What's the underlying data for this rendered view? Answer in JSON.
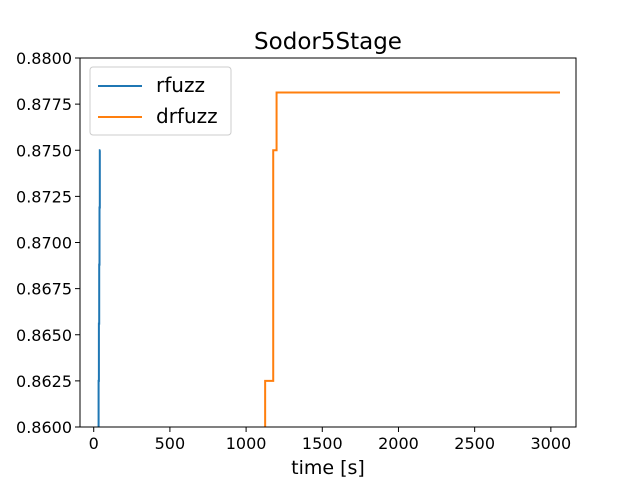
{
  "chart_data": {
    "type": "line",
    "title": "Sodor5Stage",
    "xlabel": "time [s]",
    "ylabel": "",
    "xlim": [
      -90,
      3165
    ],
    "ylim": [
      0.86,
      0.88
    ],
    "xticks": [
      0,
      500,
      1000,
      1500,
      2000,
      2500,
      3000
    ],
    "yticks": [
      0.86,
      0.8625,
      0.865,
      0.8675,
      0.87,
      0.8725,
      0.875,
      0.8775,
      0.88
    ],
    "xtick_labels": [
      "0",
      "500",
      "1000",
      "1500",
      "2000",
      "2500",
      "3000"
    ],
    "ytick_labels": [
      "0.8600",
      "0.8625",
      "0.8650",
      "0.8675",
      "0.8700",
      "0.8725",
      "0.8750",
      "0.8775",
      "0.8800"
    ],
    "grid": false,
    "legend_position": "top-left",
    "step": true,
    "series": [
      {
        "name": "rfuzz",
        "color": "#1f77b4",
        "x": [
          30,
          32,
          34,
          36,
          38,
          40,
          42,
          44
        ],
        "y": [
          0.8563,
          0.8625,
          0.8656,
          0.8688,
          0.8719,
          0.875,
          0.875,
          0.875
        ]
      },
      {
        "name": "drfuzz",
        "color": "#ff7f0e",
        "x": [
          1110,
          1125,
          1163,
          1178,
          1195,
          1200,
          3060
        ],
        "y": [
          0.8563,
          0.8625,
          0.8625,
          0.875,
          0.875,
          0.87813,
          0.87813
        ]
      }
    ]
  }
}
